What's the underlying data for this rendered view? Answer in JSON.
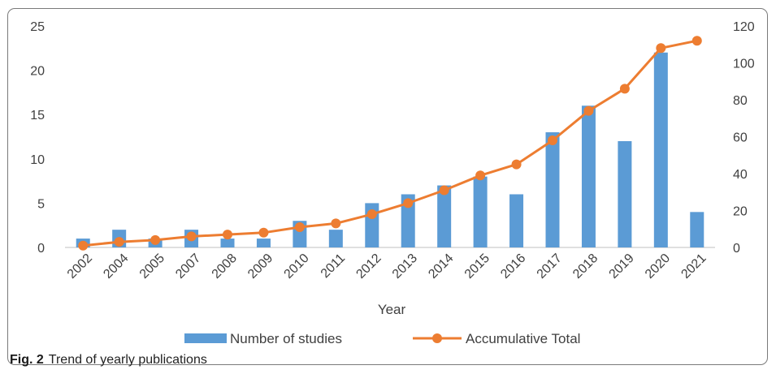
{
  "caption": {
    "fig_label": "Fig. 2",
    "text": "Trend of yearly publications"
  },
  "chart_data": {
    "type": "bar",
    "categories": [
      "2002",
      "2004",
      "2005",
      "2007",
      "2008",
      "2009",
      "2010",
      "2011",
      "2012",
      "2013",
      "2014",
      "2015",
      "2016",
      "2017",
      "2018",
      "2019",
      "2020",
      "2021"
    ],
    "series": [
      {
        "name": "Number of studies",
        "type": "bar",
        "axis": "left",
        "color": "#5B9BD5",
        "values": [
          1,
          2,
          1,
          2,
          1,
          1,
          3,
          2,
          5,
          6,
          7,
          8,
          6,
          13,
          16,
          12,
          22,
          4
        ]
      },
      {
        "name": "Accumulative Total",
        "type": "line",
        "axis": "right",
        "color": "#ED7D31",
        "values": [
          1,
          3,
          4,
          6,
          7,
          8,
          11,
          13,
          18,
          24,
          31,
          39,
          45,
          58,
          74,
          86,
          108,
          112
        ]
      }
    ],
    "xlabel": "Year",
    "ylabel": "",
    "y2label": "",
    "ylim": [
      0,
      25
    ],
    "y_ticks": [
      0,
      5,
      10,
      15,
      20,
      25
    ],
    "y2lim": [
      0,
      120
    ],
    "y2_ticks": [
      0,
      20,
      40,
      60,
      80,
      100,
      120
    ],
    "grid": false,
    "legend_position": "bottom"
  }
}
